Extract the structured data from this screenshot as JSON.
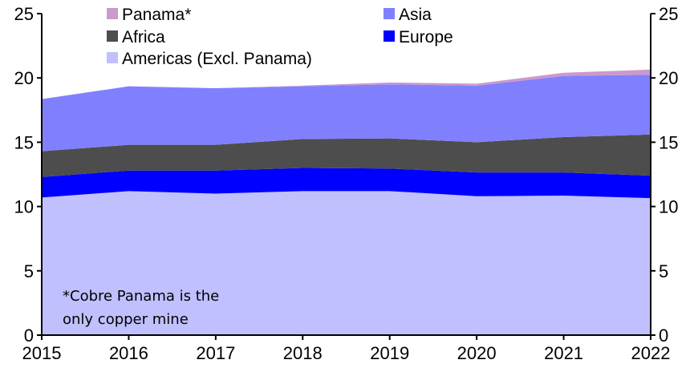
{
  "chart_data": {
    "type": "area",
    "stacked": true,
    "title": "",
    "xlabel": "",
    "ylabel": "",
    "x": [
      2015,
      2016,
      2017,
      2018,
      2019,
      2020,
      2021,
      2022
    ],
    "ylim": [
      0,
      25
    ],
    "yticks": [
      0,
      5,
      10,
      15,
      20,
      25
    ],
    "grid": false,
    "legend_position": "top",
    "series": [
      {
        "name": "Americas (Excl. Panama)",
        "color": "#C0C0FF",
        "values": [
          10.7,
          11.2,
          11.0,
          11.2,
          11.2,
          10.8,
          10.85,
          10.65
        ]
      },
      {
        "name": "Europe",
        "color": "#0000FF",
        "values": [
          1.6,
          1.6,
          1.8,
          1.8,
          1.75,
          1.85,
          1.8,
          1.75
        ]
      },
      {
        "name": "Africa",
        "color": "#4D4D4D",
        "values": [
          2.0,
          2.0,
          2.0,
          2.25,
          2.35,
          2.35,
          2.75,
          3.2
        ]
      },
      {
        "name": "Asia",
        "color": "#8080FF",
        "values": [
          4.05,
          4.55,
          4.4,
          4.1,
          4.2,
          4.4,
          4.75,
          4.65
        ]
      },
      {
        "name": "Panama*",
        "color": "#CC99CC",
        "values": [
          0,
          0,
          0,
          0.05,
          0.15,
          0.15,
          0.25,
          0.4
        ]
      }
    ],
    "legend_order": [
      "Panama*",
      "Asia",
      "Africa",
      "Europe",
      "Americas (Excl. Panama)"
    ],
    "annotation": [
      "*Cobre Panama is the",
      "only copper mine"
    ]
  }
}
